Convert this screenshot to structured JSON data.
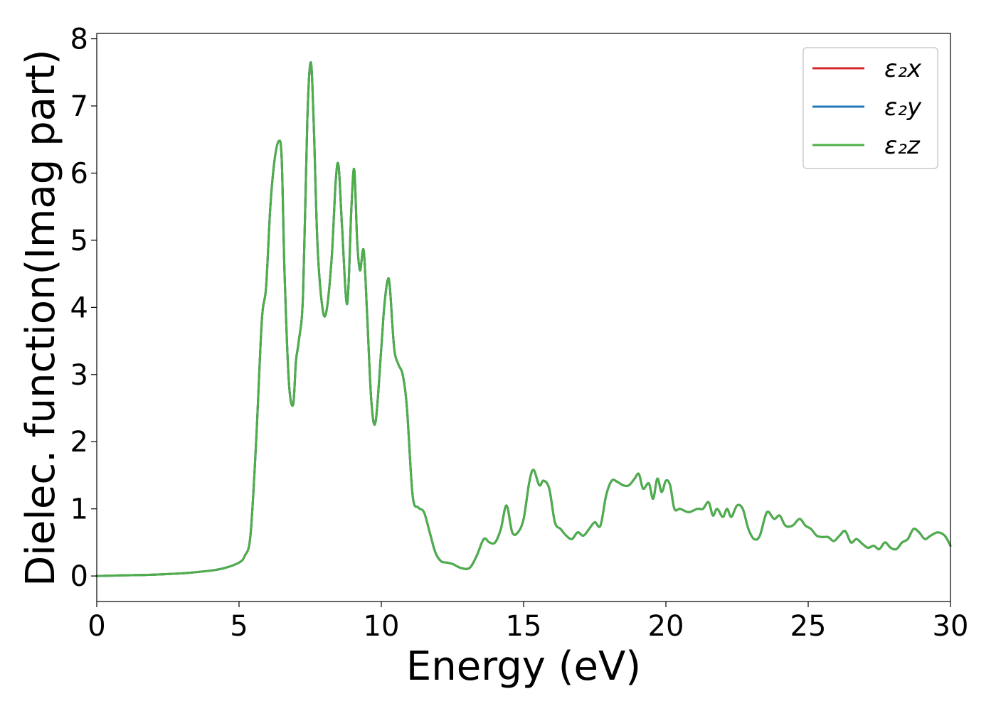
{
  "chart_data": {
    "type": "line",
    "xlabel": "Energy (eV)",
    "ylabel": "Dielec. function(Imag part)",
    "xlim": [
      0,
      30
    ],
    "ylim": [
      -0.38,
      8.08
    ],
    "xticks": [
      "0",
      "5",
      "10",
      "15",
      "20",
      "25",
      "30"
    ],
    "yticks": [
      "0",
      "1",
      "2",
      "3",
      "4",
      "5",
      "6",
      "7",
      "8"
    ],
    "grid": false,
    "legend_position": "top-right",
    "x": [
      0,
      1,
      2,
      3,
      4,
      4.5,
      5,
      5.2,
      5.4,
      5.6,
      5.8,
      5.95,
      6.1,
      6.25,
      6.4,
      6.5,
      6.6,
      6.75,
      6.9,
      7.0,
      7.1,
      7.25,
      7.4,
      7.52,
      7.62,
      7.75,
      7.9,
      8.05,
      8.25,
      8.4,
      8.5,
      8.62,
      8.8,
      8.95,
      9.05,
      9.15,
      9.25,
      9.38,
      9.5,
      9.65,
      9.8,
      10.0,
      10.1,
      10.22,
      10.3,
      10.45,
      10.6,
      10.75,
      10.9,
      11.1,
      11.3,
      11.5,
      11.7,
      11.9,
      12.1,
      12.3,
      12.5,
      12.8,
      13.1,
      13.35,
      13.6,
      13.8,
      14.0,
      14.2,
      14.4,
      14.6,
      14.8,
      15.0,
      15.2,
      15.35,
      15.55,
      15.7,
      15.9,
      16.1,
      16.3,
      16.5,
      16.7,
      16.9,
      17.1,
      17.3,
      17.5,
      17.7,
      17.9,
      18.1,
      18.3,
      18.5,
      18.7,
      18.9,
      19.05,
      19.2,
      19.4,
      19.55,
      19.7,
      19.85,
      20.0,
      20.15,
      20.3,
      20.5,
      20.8,
      21.1,
      21.3,
      21.5,
      21.65,
      21.8,
      22.0,
      22.15,
      22.3,
      22.5,
      22.7,
      22.9,
      23.1,
      23.3,
      23.55,
      23.8,
      24.0,
      24.2,
      24.45,
      24.7,
      24.9,
      25.1,
      25.3,
      25.5,
      25.7,
      25.9,
      26.1,
      26.3,
      26.5,
      26.7,
      26.9,
      27.1,
      27.3,
      27.5,
      27.7,
      27.9,
      28.1,
      28.3,
      28.5,
      28.7,
      28.9,
      29.1,
      29.3,
      29.55,
      29.8,
      30.0
    ],
    "series": [
      {
        "name": "ε₂x",
        "values": [
          0.0,
          0.01,
          0.02,
          0.04,
          0.08,
          0.12,
          0.2,
          0.3,
          0.6,
          2.0,
          3.8,
          4.3,
          5.5,
          6.2,
          6.48,
          6.2,
          4.5,
          2.9,
          2.55,
          3.2,
          3.5,
          4.2,
          6.8,
          7.65,
          6.8,
          5.0,
          4.1,
          3.9,
          4.7,
          5.9,
          6.1,
          5.2,
          4.05,
          5.5,
          6.05,
          5.0,
          4.55,
          4.85,
          3.9,
          2.6,
          2.3,
          3.4,
          4.0,
          4.4,
          4.3,
          3.4,
          3.15,
          3.0,
          2.5,
          1.2,
          1.02,
          0.95,
          0.65,
          0.35,
          0.22,
          0.2,
          0.18,
          0.12,
          0.12,
          0.3,
          0.55,
          0.5,
          0.5,
          0.7,
          1.05,
          0.65,
          0.65,
          0.85,
          1.4,
          1.58,
          1.35,
          1.42,
          1.3,
          0.8,
          0.7,
          0.6,
          0.55,
          0.65,
          0.6,
          0.7,
          0.8,
          0.75,
          1.2,
          1.42,
          1.4,
          1.35,
          1.35,
          1.45,
          1.52,
          1.3,
          1.38,
          1.15,
          1.45,
          1.25,
          1.42,
          1.35,
          1.0,
          1.0,
          0.95,
          1.0,
          1.0,
          1.1,
          0.9,
          1.0,
          0.88,
          1.0,
          0.88,
          1.05,
          1.0,
          0.7,
          0.55,
          0.6,
          0.95,
          0.85,
          0.9,
          0.75,
          0.75,
          0.85,
          0.75,
          0.7,
          0.6,
          0.58,
          0.58,
          0.52,
          0.6,
          0.67,
          0.5,
          0.55,
          0.48,
          0.42,
          0.45,
          0.4,
          0.5,
          0.42,
          0.4,
          0.5,
          0.55,
          0.7,
          0.65,
          0.55,
          0.6,
          0.65,
          0.6,
          0.45
        ]
      },
      {
        "name": "ε₂y",
        "values": [
          0.0,
          0.01,
          0.02,
          0.04,
          0.08,
          0.12,
          0.2,
          0.3,
          0.6,
          2.0,
          3.8,
          4.3,
          5.5,
          6.2,
          6.48,
          6.2,
          4.5,
          2.9,
          2.55,
          3.2,
          3.5,
          4.2,
          6.8,
          7.65,
          6.8,
          5.0,
          4.1,
          3.9,
          4.7,
          5.9,
          6.1,
          5.2,
          4.05,
          5.5,
          6.05,
          5.0,
          4.55,
          4.85,
          3.9,
          2.6,
          2.3,
          3.4,
          4.0,
          4.4,
          4.3,
          3.4,
          3.15,
          3.0,
          2.5,
          1.2,
          1.02,
          0.95,
          0.65,
          0.35,
          0.22,
          0.2,
          0.18,
          0.12,
          0.12,
          0.3,
          0.55,
          0.5,
          0.5,
          0.7,
          1.05,
          0.65,
          0.65,
          0.85,
          1.4,
          1.58,
          1.35,
          1.42,
          1.3,
          0.8,
          0.7,
          0.6,
          0.55,
          0.65,
          0.6,
          0.7,
          0.8,
          0.75,
          1.2,
          1.42,
          1.4,
          1.35,
          1.35,
          1.45,
          1.52,
          1.3,
          1.38,
          1.15,
          1.45,
          1.25,
          1.42,
          1.35,
          1.0,
          1.0,
          0.95,
          1.0,
          1.0,
          1.1,
          0.9,
          1.0,
          0.88,
          1.0,
          0.88,
          1.05,
          1.0,
          0.7,
          0.55,
          0.6,
          0.95,
          0.85,
          0.9,
          0.75,
          0.75,
          0.85,
          0.75,
          0.7,
          0.6,
          0.58,
          0.58,
          0.52,
          0.6,
          0.67,
          0.5,
          0.55,
          0.48,
          0.42,
          0.45,
          0.4,
          0.5,
          0.42,
          0.4,
          0.5,
          0.55,
          0.7,
          0.65,
          0.55,
          0.6,
          0.65,
          0.6,
          0.45
        ]
      },
      {
        "name": "ε₂z",
        "values": [
          0.0,
          0.01,
          0.02,
          0.04,
          0.08,
          0.12,
          0.2,
          0.3,
          0.6,
          2.0,
          3.8,
          4.3,
          5.5,
          6.2,
          6.48,
          6.2,
          4.5,
          2.9,
          2.55,
          3.2,
          3.5,
          4.2,
          6.8,
          7.65,
          6.8,
          5.0,
          4.1,
          3.9,
          4.7,
          5.9,
          6.1,
          5.2,
          4.05,
          5.5,
          6.05,
          5.0,
          4.55,
          4.85,
          3.9,
          2.6,
          2.3,
          3.4,
          4.0,
          4.4,
          4.3,
          3.4,
          3.15,
          3.0,
          2.5,
          1.2,
          1.02,
          0.95,
          0.65,
          0.35,
          0.22,
          0.2,
          0.18,
          0.12,
          0.12,
          0.3,
          0.55,
          0.5,
          0.5,
          0.7,
          1.05,
          0.65,
          0.65,
          0.85,
          1.4,
          1.58,
          1.35,
          1.42,
          1.3,
          0.8,
          0.7,
          0.6,
          0.55,
          0.65,
          0.6,
          0.7,
          0.8,
          0.75,
          1.2,
          1.42,
          1.4,
          1.35,
          1.35,
          1.45,
          1.52,
          1.3,
          1.38,
          1.15,
          1.45,
          1.25,
          1.42,
          1.35,
          1.0,
          1.0,
          0.95,
          1.0,
          1.0,
          1.1,
          0.9,
          1.0,
          0.88,
          1.0,
          0.88,
          1.05,
          1.0,
          0.7,
          0.55,
          0.6,
          0.95,
          0.85,
          0.9,
          0.75,
          0.75,
          0.85,
          0.75,
          0.7,
          0.6,
          0.58,
          0.58,
          0.52,
          0.6,
          0.67,
          0.5,
          0.55,
          0.48,
          0.42,
          0.45,
          0.4,
          0.5,
          0.42,
          0.4,
          0.5,
          0.55,
          0.7,
          0.65,
          0.55,
          0.6,
          0.65,
          0.6,
          0.45
        ]
      }
    ],
    "colors": {
      "series": [
        "#d62728",
        "#1f77b4",
        "#4daf4a"
      ],
      "axis": "#000000",
      "legend_border": "#cccccc",
      "background": "#ffffff"
    }
  }
}
